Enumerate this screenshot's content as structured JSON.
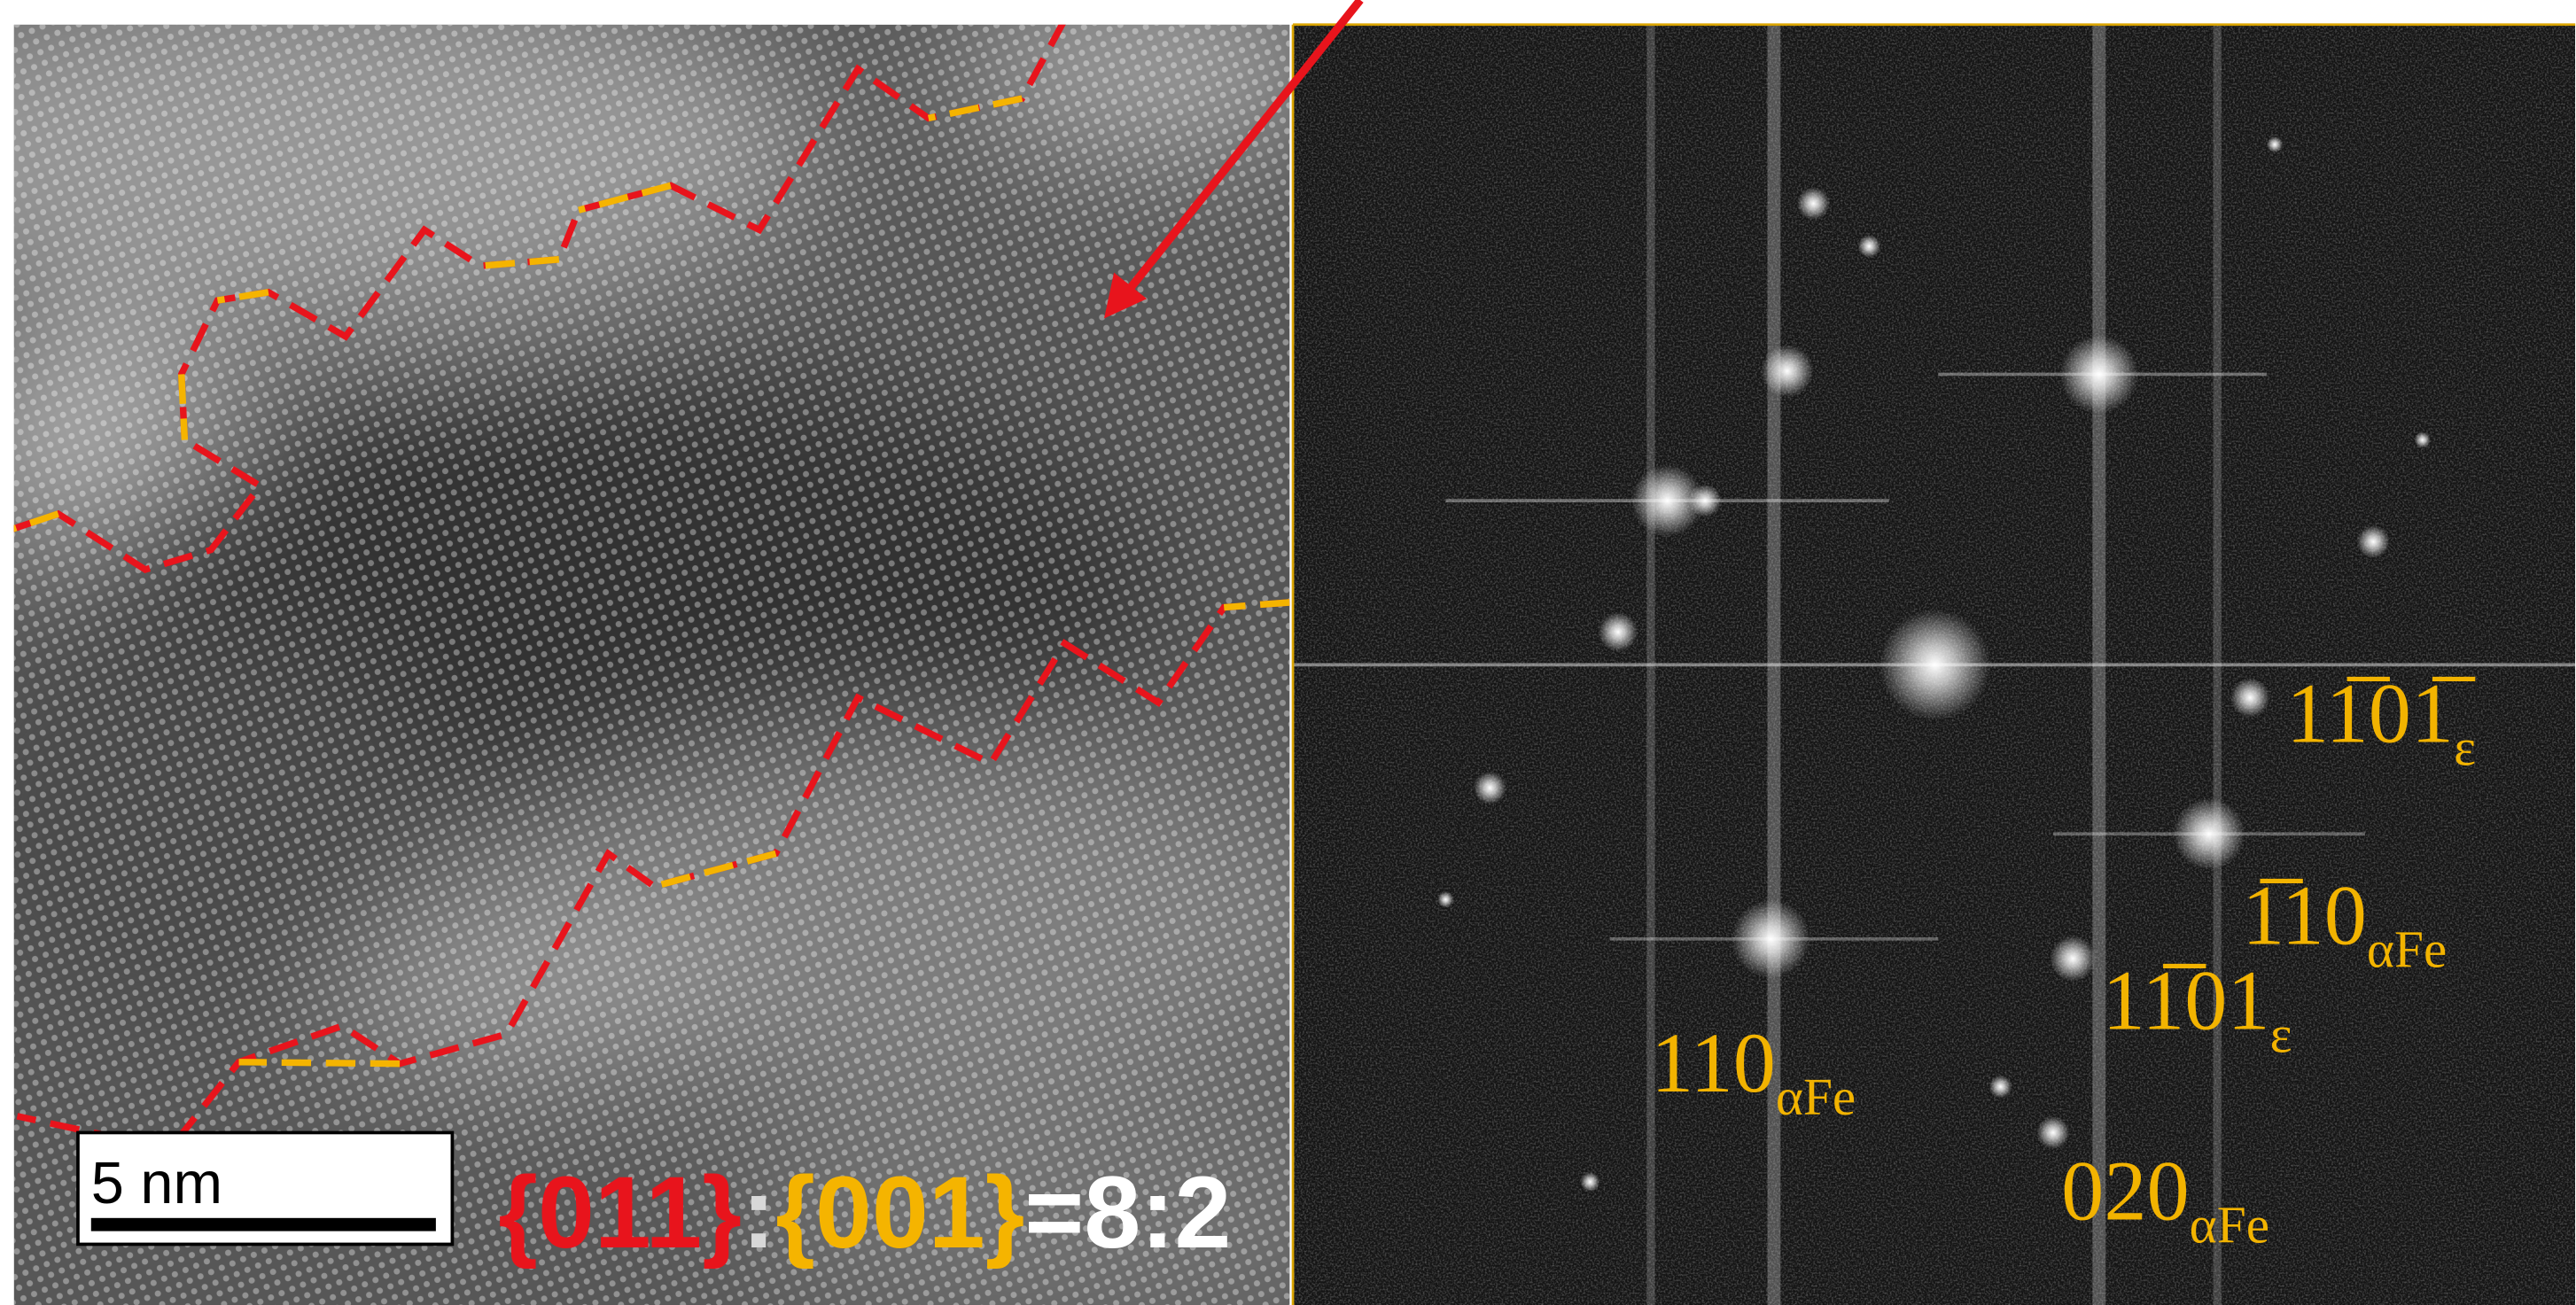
{
  "scale_bar": "5 nm",
  "ratio": {
    "first": "{011}",
    "separator": ":",
    "second": "{001}",
    "result": "=8:2"
  },
  "fft_labels": [
    {
      "index": "11̅01̅",
      "sub": "ε"
    },
    {
      "index": "1̅10",
      "sub": "αFe"
    },
    {
      "index": "11̅01",
      "sub": "ε"
    },
    {
      "index": "110",
      "sub": "αFe"
    },
    {
      "index": "020",
      "sub": "αFe"
    }
  ]
}
